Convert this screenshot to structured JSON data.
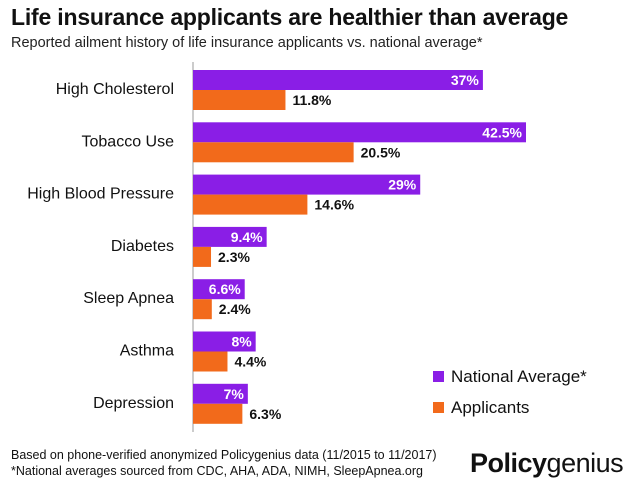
{
  "header": {
    "title": "Life insurance applicants are healthier than average",
    "subtitle": "Reported ailment history of life insurance applicants vs. national average*"
  },
  "footer": {
    "note1": "Based on phone-verified anonymized Policygenius data (11/2015 to 11/2017)",
    "note2": "*National averages sourced from CDC, AHA, ADA, NIMH, SleepApnea.org",
    "brand_bold": "Policy",
    "brand_regular": "genius"
  },
  "colors": {
    "national": "#8a1ee6",
    "applicants": "#f26a1b"
  },
  "chart_data": {
    "type": "bar",
    "orientation": "horizontal",
    "categories": [
      "High Cholesterol",
      "Tobacco Use",
      "High Blood Pressure",
      "Diabetes",
      "Sleep Apnea",
      "Asthma",
      "Depression"
    ],
    "series": [
      {
        "name": "National Average*",
        "values": [
          37,
          42.5,
          29,
          9.4,
          6.6,
          8,
          7
        ],
        "labels": [
          "37%",
          "42.5%",
          "29%",
          "9.4%",
          "6.6%",
          "8%",
          "7%"
        ]
      },
      {
        "name": "Applicants",
        "values": [
          11.8,
          20.5,
          14.6,
          2.3,
          2.4,
          4.4,
          6.3
        ],
        "labels": [
          "11.8%",
          "20.5%",
          "14.6%",
          "2.3%",
          "2.4%",
          "4.4%",
          "6.3%"
        ]
      }
    ],
    "xlim": [
      0,
      42.5
    ],
    "grid": false,
    "legend": "bottom-right"
  }
}
